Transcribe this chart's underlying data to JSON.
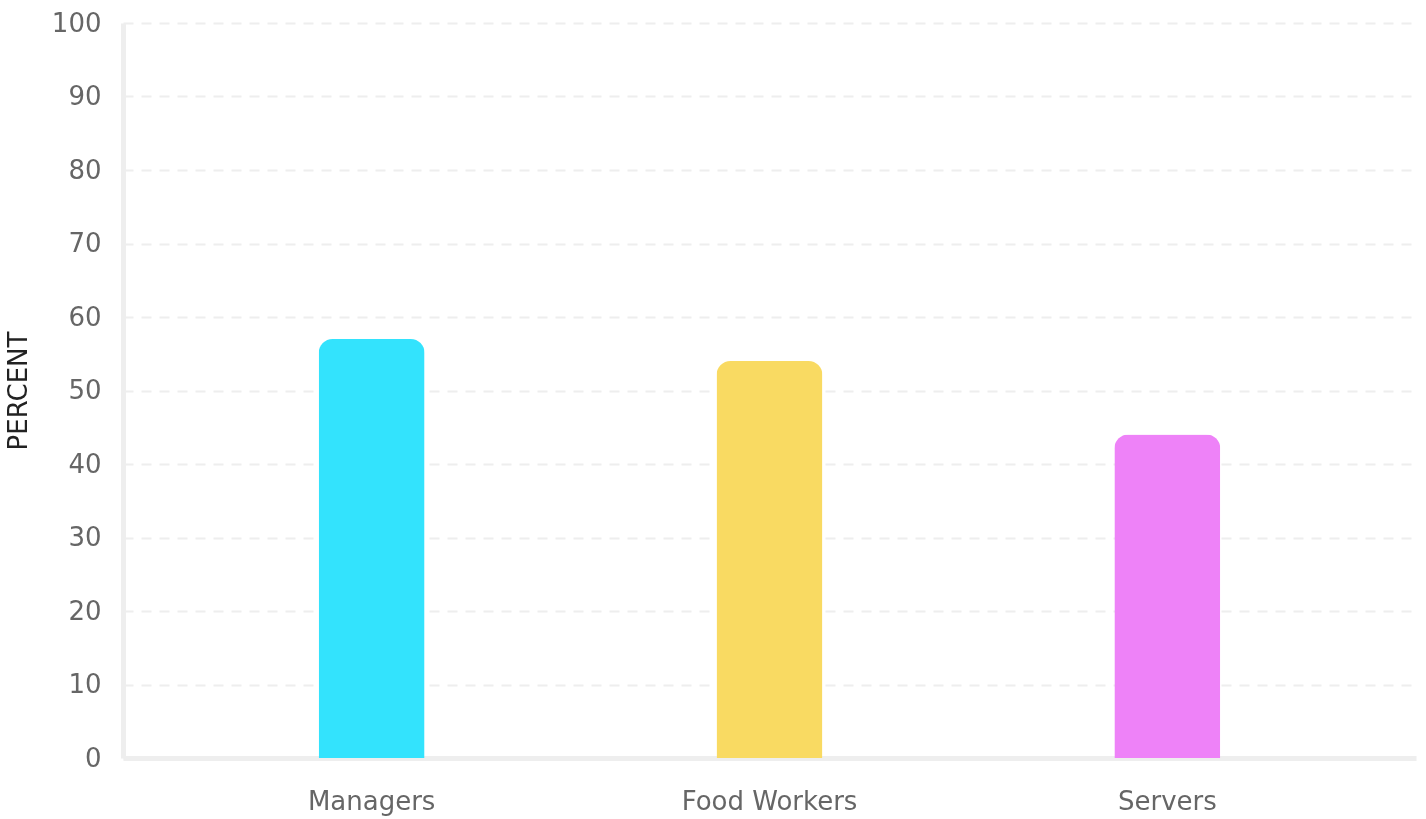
{
  "chart_data": {
    "type": "bar",
    "ylabel": "PERCENT",
    "categories": [
      "Managers",
      "Food Workers",
      "Servers"
    ],
    "values": [
      57,
      54,
      44
    ],
    "colors": [
      "#33e3fd",
      "#f9da62",
      "#ee82f8"
    ],
    "ylim": [
      0,
      100
    ],
    "yticks": [
      0,
      10,
      20,
      30,
      40,
      50,
      60,
      70,
      80,
      90,
      100
    ],
    "grid": "y",
    "line_style": "dashed"
  }
}
